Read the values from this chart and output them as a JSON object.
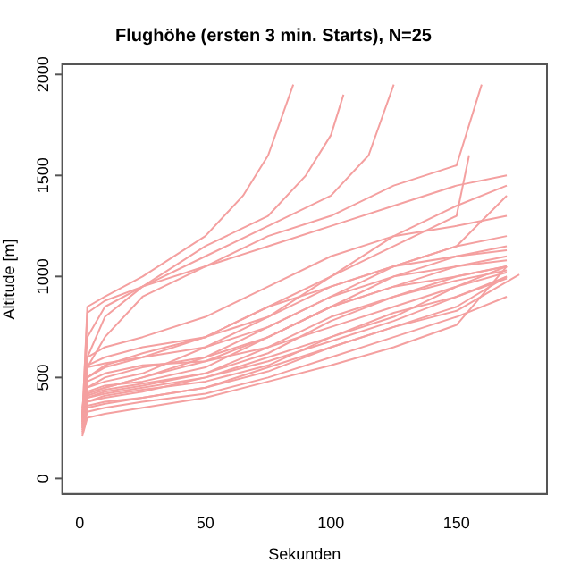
{
  "chart_data": {
    "type": "line",
    "title": "Flughöhe (ersten 3 min. Starts), N=25",
    "xlabel": "Sekunden",
    "ylabel": "Altitude [m]",
    "xlim": [
      -7,
      186
    ],
    "xticks": [
      0,
      50,
      100,
      150
    ],
    "ylim": [
      -77,
      2050
    ],
    "yticks": [
      0,
      500,
      1000,
      1500,
      2000
    ],
    "grid": false,
    "legend": false,
    "marker": "none",
    "line_style": "solid",
    "series": [
      {
        "color": "#f4a0a0",
        "x": [
          1,
          3,
          10,
          25,
          50,
          65,
          75,
          85
        ],
        "values": [
          280,
          850,
          900,
          1000,
          1200,
          1400,
          1600,
          1950
        ]
      },
      {
        "color": "#f4a0a0",
        "x": [
          1,
          3,
          10,
          25,
          50,
          75,
          90,
          100,
          105
        ],
        "values": [
          300,
          820,
          880,
          950,
          1150,
          1300,
          1500,
          1700,
          1900
        ]
      },
      {
        "color": "#f4a0a0",
        "x": [
          1,
          3,
          10,
          25,
          50,
          75,
          100,
          115,
          125
        ],
        "values": [
          300,
          700,
          850,
          950,
          1100,
          1250,
          1400,
          1600,
          1950
        ]
      },
      {
        "color": "#f4a0a0",
        "x": [
          1,
          3,
          10,
          25,
          50,
          75,
          100,
          125,
          150,
          160
        ],
        "values": [
          300,
          600,
          800,
          950,
          1050,
          1200,
          1300,
          1450,
          1550,
          1950
        ]
      },
      {
        "color": "#f4a0a0",
        "x": [
          1,
          3,
          10,
          25,
          50,
          75,
          100,
          125,
          150,
          170
        ],
        "values": [
          320,
          550,
          700,
          900,
          1050,
          1150,
          1250,
          1350,
          1450,
          1500
        ]
      },
      {
        "color": "#f4a0a0",
        "x": [
          1,
          3,
          10,
          25,
          50,
          75,
          100,
          125,
          150,
          170
        ],
        "values": [
          300,
          560,
          600,
          650,
          700,
          800,
          1000,
          1200,
          1350,
          1450
        ]
      },
      {
        "color": "#f4a0a0",
        "x": [
          1,
          3,
          10,
          25,
          50,
          75,
          100,
          125,
          150,
          170
        ],
        "values": [
          280,
          500,
          550,
          600,
          650,
          750,
          900,
          1050,
          1150,
          1400
        ]
      },
      {
        "color": "#f4a0a0",
        "x": [
          1,
          3,
          10,
          25,
          50,
          75,
          100,
          125,
          150,
          170
        ],
        "values": [
          270,
          450,
          500,
          550,
          600,
          700,
          850,
          1000,
          1100,
          1150
        ]
      },
      {
        "color": "#f4a0a0",
        "x": [
          1,
          3,
          10,
          25,
          50,
          75,
          100,
          125,
          150,
          170
        ],
        "values": [
          260,
          420,
          450,
          500,
          580,
          700,
          850,
          950,
          1050,
          1100
        ]
      },
      {
        "color": "#f4a0a0",
        "x": [
          1,
          3,
          10,
          25,
          50,
          75,
          100,
          125,
          150,
          170
        ],
        "values": [
          250,
          400,
          430,
          460,
          520,
          650,
          800,
          900,
          1000,
          1050
        ]
      },
      {
        "color": "#f4a0a0",
        "x": [
          1,
          3,
          10,
          25,
          50,
          75,
          100,
          125,
          150,
          170
        ],
        "values": [
          300,
          480,
          520,
          560,
          580,
          650,
          750,
          850,
          950,
          1050
        ]
      },
      {
        "color": "#f4a0a0",
        "x": [
          1,
          3,
          10,
          25,
          50,
          75,
          100,
          125,
          150,
          170
        ],
        "values": [
          240,
          380,
          400,
          430,
          500,
          600,
          700,
          800,
          950,
          1020
        ]
      },
      {
        "color": "#f4a0a0",
        "x": [
          1,
          3,
          10,
          25,
          50,
          75,
          100,
          125,
          150,
          170
        ],
        "values": [
          230,
          360,
          380,
          400,
          450,
          550,
          650,
          750,
          850,
          1000
        ]
      },
      {
        "color": "#f4a0a0",
        "x": [
          1,
          3,
          10,
          25,
          50,
          75,
          100,
          125,
          150,
          170
        ],
        "values": [
          220,
          330,
          350,
          380,
          420,
          500,
          600,
          700,
          800,
          900
        ]
      },
      {
        "color": "#f4a0a0",
        "x": [
          1,
          3,
          10,
          25,
          50,
          75,
          100,
          125,
          150,
          170
        ],
        "values": [
          210,
          300,
          320,
          350,
          400,
          480,
          560,
          650,
          760,
          1050
        ]
      },
      {
        "color": "#f4a0a0",
        "x": [
          1,
          3,
          10,
          25,
          50,
          75,
          100,
          125,
          150,
          170
        ],
        "values": [
          350,
          550,
          570,
          600,
          700,
          850,
          950,
          1050,
          1150,
          1200
        ]
      },
      {
        "color": "#f4a0a0",
        "x": [
          1,
          3,
          10,
          25,
          50,
          75,
          100,
          125,
          150,
          170
        ],
        "values": [
          320,
          450,
          480,
          520,
          650,
          800,
          950,
          1050,
          1100,
          1130
        ]
      },
      {
        "color": "#f4a0a0",
        "x": [
          1,
          3,
          10,
          25,
          50,
          75,
          100,
          125,
          150,
          170
        ],
        "values": [
          330,
          420,
          450,
          500,
          600,
          750,
          900,
          1000,
          1050,
          1080
        ]
      },
      {
        "color": "#f4a0a0",
        "x": [
          1,
          3,
          10,
          25,
          50,
          75,
          100,
          125,
          150,
          170
        ],
        "values": [
          290,
          400,
          420,
          450,
          500,
          580,
          680,
          780,
          900,
          1000
        ]
      },
      {
        "color": "#f4a0a0",
        "x": [
          1,
          3,
          10,
          25,
          50,
          75,
          100,
          125,
          150,
          155
        ],
        "values": [
          300,
          500,
          560,
          620,
          700,
          850,
          1000,
          1150,
          1300,
          1600
        ]
      },
      {
        "color": "#f4a0a0",
        "x": [
          1,
          3,
          10,
          25,
          50,
          75,
          100,
          125,
          150,
          170
        ],
        "values": [
          280,
          430,
          460,
          480,
          550,
          700,
          850,
          950,
          1000,
          1050
        ]
      },
      {
        "color": "#f4a0a0",
        "x": [
          1,
          3,
          10,
          25,
          50,
          75,
          100,
          125,
          150,
          170
        ],
        "values": [
          270,
          410,
          440,
          470,
          520,
          620,
          780,
          900,
          980,
          1030
        ]
      },
      {
        "color": "#f4a0a0",
        "x": [
          1,
          3,
          10,
          25,
          50,
          75,
          100,
          125,
          150,
          170
        ],
        "values": [
          260,
          380,
          410,
          440,
          480,
          560,
          700,
          820,
          900,
          990
        ]
      },
      {
        "color": "#f4a0a0",
        "x": [
          1,
          3,
          10,
          25,
          50,
          75,
          100,
          125,
          150,
          175
        ],
        "values": [
          250,
          350,
          370,
          400,
          450,
          530,
          650,
          750,
          830,
          1010
        ]
      },
      {
        "color": "#f4a0a0",
        "x": [
          1,
          3,
          10,
          25,
          50,
          75,
          100,
          125,
          150,
          170
        ],
        "values": [
          300,
          600,
          650,
          700,
          800,
          950,
          1100,
          1200,
          1250,
          1300
        ]
      }
    ]
  }
}
